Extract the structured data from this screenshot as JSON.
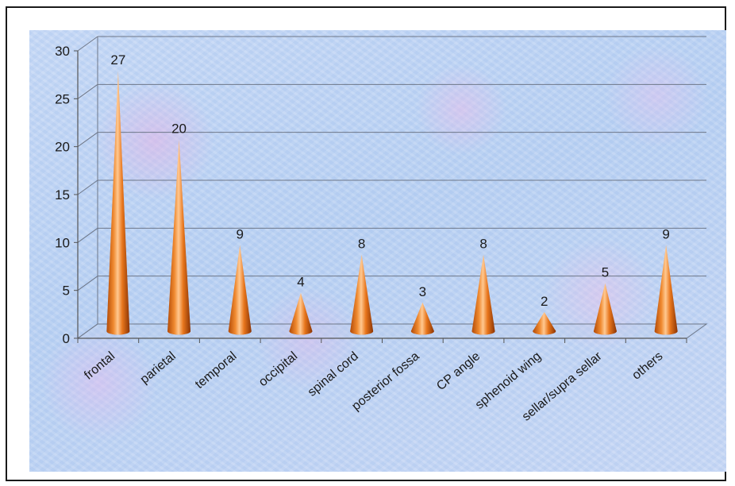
{
  "chart_data": {
    "type": "bar",
    "bar_shape": "cone",
    "categories": [
      "frontal",
      "parietal",
      "temporal",
      "occipital",
      "spinal cord",
      "posterior fossa",
      "CP angle",
      "sphenoid wing",
      "sellar/supra sellar",
      "others"
    ],
    "values": [
      27,
      20,
      9,
      4,
      8,
      3,
      8,
      2,
      5,
      9
    ],
    "data_labels": [
      "27",
      "20",
      "9",
      "4",
      "8",
      "3",
      "8",
      "2",
      "5",
      "9"
    ],
    "yticks": [
      "0",
      "5",
      "10",
      "15",
      "20",
      "25",
      "30"
    ],
    "ylim": [
      0,
      30
    ],
    "grid": true,
    "legend": "none",
    "colors": {
      "bar": "#e8761c",
      "bar_light": "#ffc28a",
      "bar_dark": "#9e3e05",
      "grid": "#6e7788",
      "axis": "#555555"
    }
  }
}
